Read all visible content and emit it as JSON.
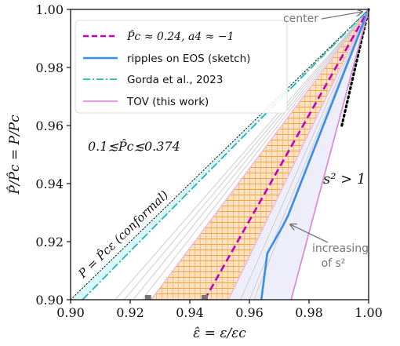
{
  "chart_data": {
    "type": "line",
    "title": "",
    "xlabel": "ε̂ = ε/εc",
    "ylabel": "P̂/P̂c = P/Pc",
    "xlim": [
      0.9,
      1.0
    ],
    "ylim": [
      0.9,
      1.0
    ],
    "xticks": [
      "0.90",
      "0.92",
      "0.94",
      "0.96",
      "0.98",
      "1.00"
    ],
    "yticks": [
      "0.90",
      "0.92",
      "0.94",
      "0.96",
      "0.98",
      "1.00"
    ],
    "grid": false,
    "legend_position": "top-left",
    "series": [
      {
        "name": "P̂c ≈ 0.24, a4 ≈ −1",
        "style": "dashed",
        "color": "#c000c0",
        "x": [
          0.945,
          1.0
        ],
        "y": [
          0.9,
          1.0
        ]
      },
      {
        "name": "ripples on EOS (sketch)",
        "style": "solid",
        "color": "#3a8ee6",
        "x": [
          0.964,
          0.966,
          0.971,
          0.973,
          1.0
        ],
        "y": [
          0.9,
          0.916,
          0.925,
          0.929,
          1.0
        ]
      },
      {
        "name": "Gorda et al., 2023",
        "style": "dashdot",
        "color": "#20b5b5",
        "x": [
          0.904,
          1.0
        ],
        "y": [
          0.9,
          1.0
        ]
      },
      {
        "name": "TOV (this work)",
        "style": "solid",
        "color": "#d88fd8",
        "x": [
          0.974,
          1.0
        ],
        "y": [
          0.9,
          1.0
        ]
      }
    ],
    "reference_lines": [
      {
        "style": "dotted",
        "color": "#111111",
        "x": [
          0.9,
          1.0
        ],
        "y": [
          0.9,
          1.0
        ]
      },
      {
        "style": "dotted-thick",
        "color": "#000000",
        "x": [
          0.991,
          1.0
        ],
        "y": [
          0.96,
          1.0
        ]
      }
    ],
    "bands": [
      {
        "name": "hatched band",
        "color": "#f5a442",
        "x_low": [
          0.927,
          1.0
        ],
        "x_high": [
          0.953,
          1.0
        ]
      }
    ],
    "markers": [
      {
        "x": 0.926,
        "y": 0.9
      },
      {
        "x": 0.945,
        "y": 0.9
      }
    ],
    "annotations": {
      "range": "0.1≲P̂c≲0.374",
      "conformal": "P = P̂cε (conformal)",
      "s2": "s² > 1",
      "center": "center",
      "increasing_line1": "increasing",
      "increasing_line2": "of s²"
    },
    "colors": {
      "cyan_fill": "#d9f6f8",
      "lavender_fill": "#eeeefa",
      "orange_hatch": "#f5a442",
      "gray_rays": "#c9c9c9"
    }
  }
}
